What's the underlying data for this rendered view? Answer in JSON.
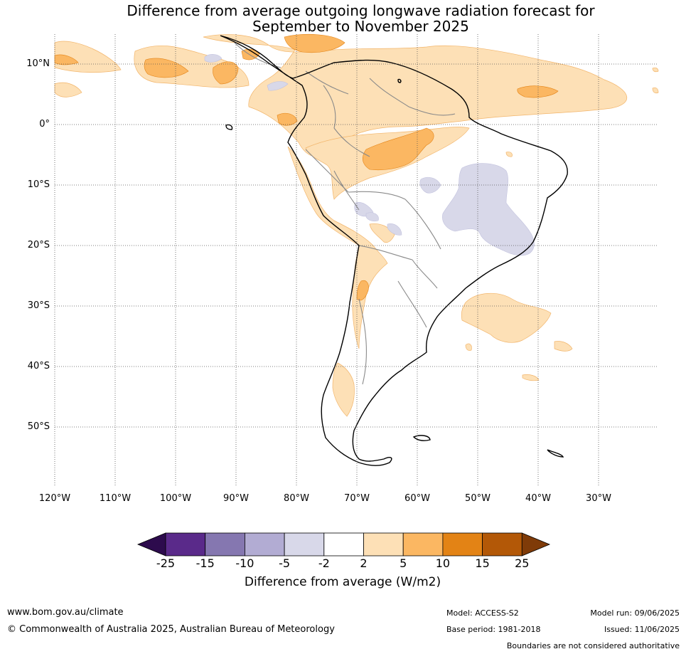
{
  "title_line1": "Difference from average outgoing longwave radiation forecast for",
  "title_line2": "September to November 2025",
  "lat_labels": [
    "10°N",
    "0°",
    "10°S",
    "20°S",
    "30°S",
    "40°S",
    "50°S"
  ],
  "lon_labels": [
    "120°W",
    "110°W",
    "100°W",
    "90°W",
    "80°W",
    "70°W",
    "60°W",
    "50°W",
    "40°W",
    "30°W"
  ],
  "legend": {
    "title": "Difference from average (W/m2)",
    "ticks": [
      "-25",
      "-15",
      "-10",
      "-5",
      "-2",
      "2",
      "5",
      "10",
      "15",
      "25"
    ],
    "colors": [
      "#2d0b4d",
      "#5a2a8a",
      "#8577b0",
      "#b2acd3",
      "#d8d8e9",
      "#ffffff",
      "#fde0b6",
      "#fbb762",
      "#e38315",
      "#b35807",
      "#7f3b08"
    ]
  },
  "footer": {
    "website": "www.bom.gov.au/climate",
    "copyright": "© Commonwealth of Australia 2025, Australian Bureau of Meteorology",
    "model": "Model: ACCESS-S2",
    "base_period": "Base period: 1981-2018",
    "model_run": "Model run: 09/06/2025",
    "issued": "Issued: 11/06/2025",
    "boundaries_note": "Boundaries are not considered authoritative"
  }
}
